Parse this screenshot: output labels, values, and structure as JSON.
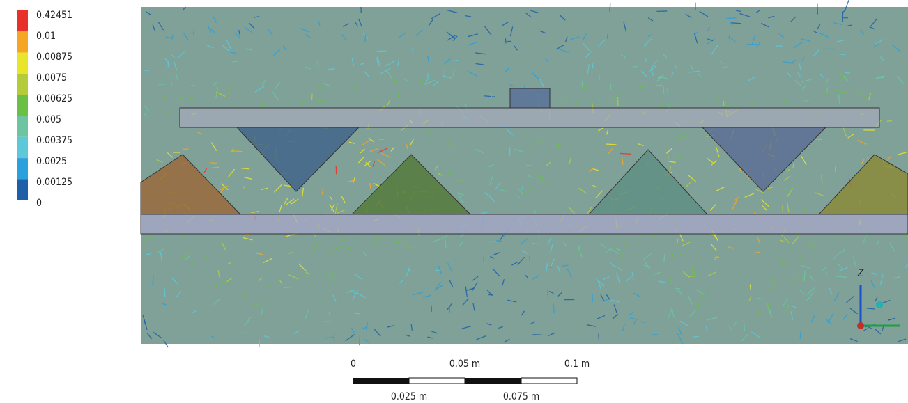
{
  "legend": {
    "labels": [
      "0.42451",
      "0.01",
      "0.00875",
      "0.0075",
      "0.00625",
      "0.005",
      "0.00375",
      "0.0025",
      "0.00125",
      "0"
    ],
    "colors": [
      "#e8312a",
      "#f5a623",
      "#e8e52a",
      "#b5cc3a",
      "#6cbf45",
      "#6cc4a0",
      "#5dc8d8",
      "#2aa0dc",
      "#1f5fa8"
    ]
  },
  "scale_bar": {
    "top_labels": [
      "0",
      "0.05 m",
      "0.1 m"
    ],
    "bottom_labels": [
      "0.025 m",
      "0.075 m"
    ]
  },
  "triad": {
    "z_label": "Z"
  }
}
